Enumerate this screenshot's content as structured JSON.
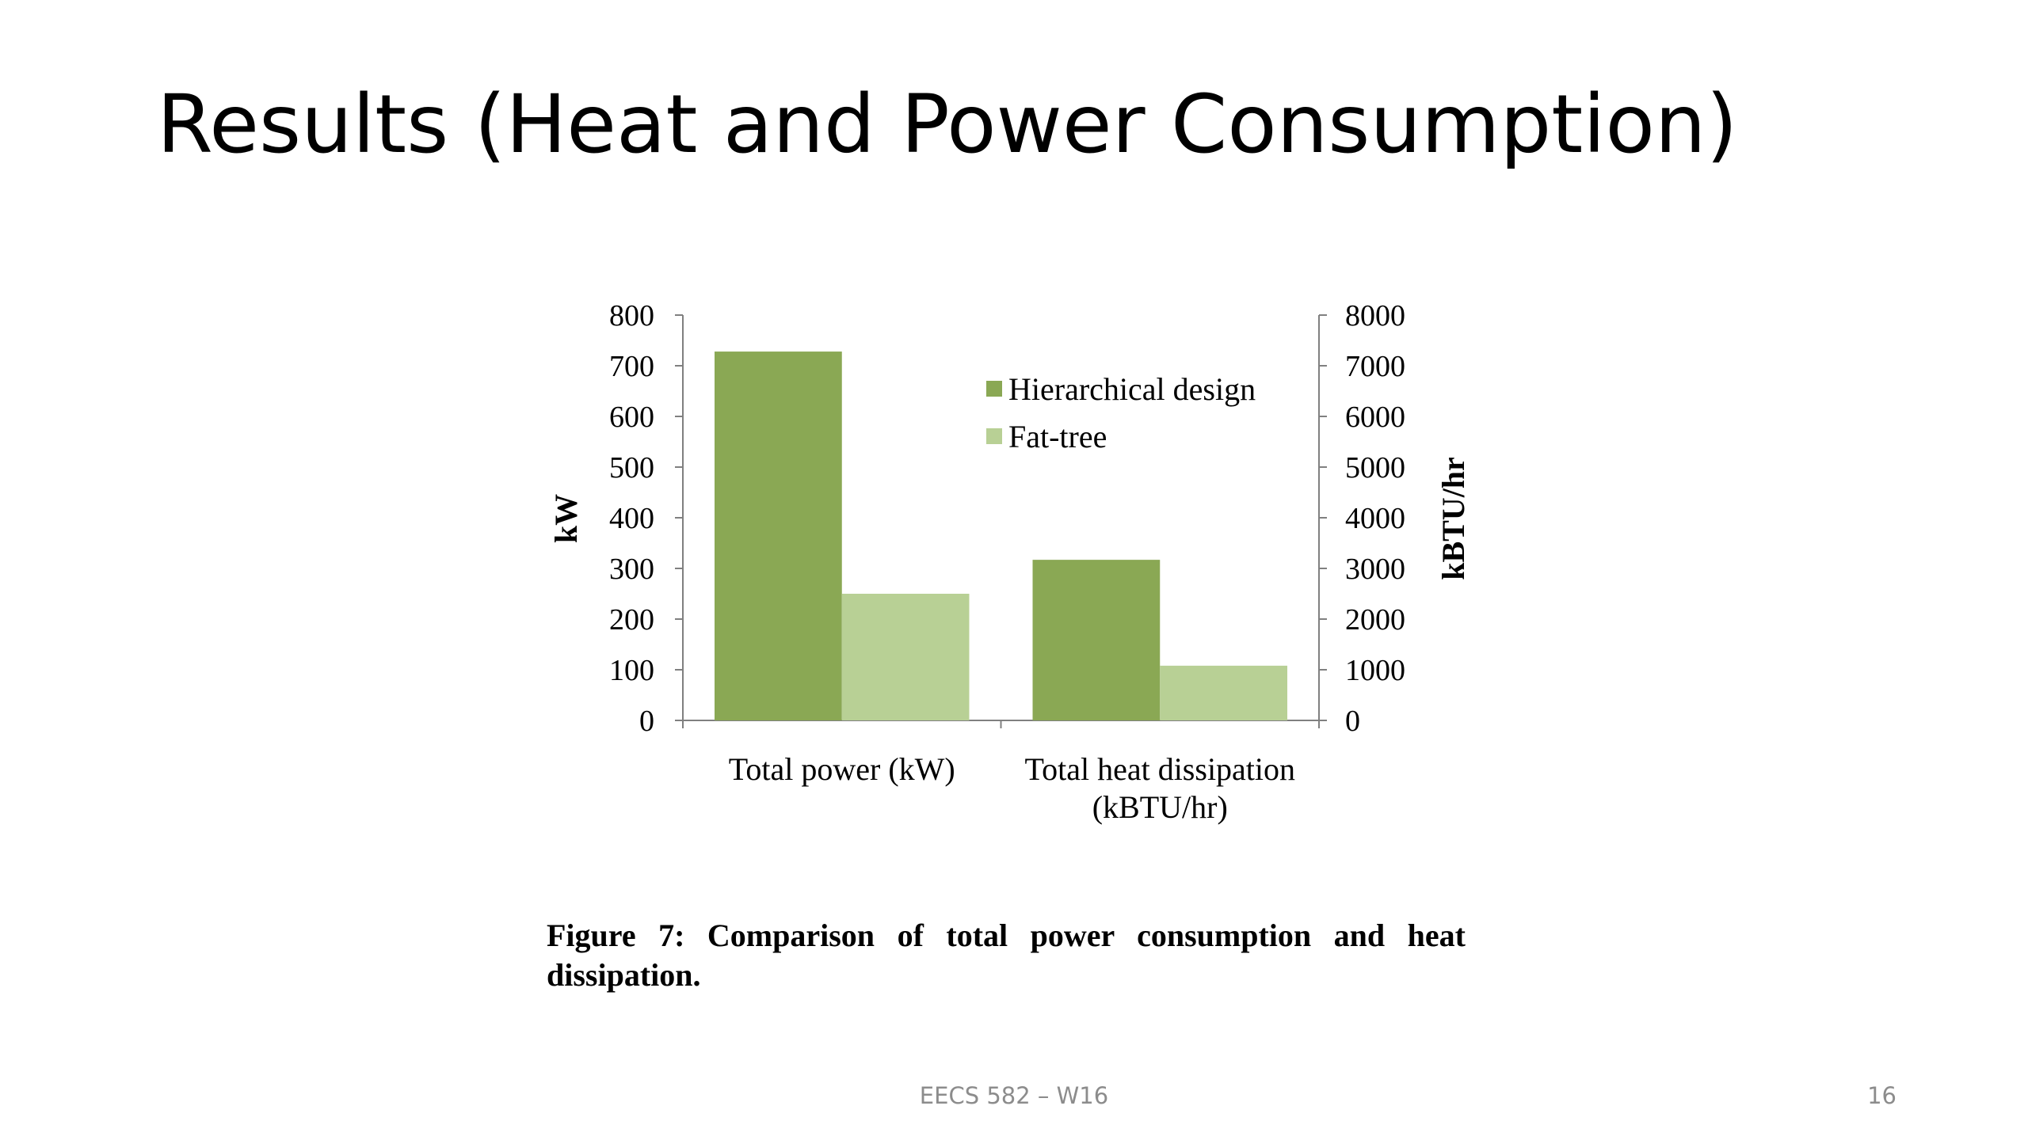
{
  "slide": {
    "title": "Results (Heat and Power Consumption)",
    "caption": "Figure 7:  Comparison of total power consumption and heat dissipation.",
    "footer": "EECS 582 – W16",
    "page_number": "16"
  },
  "chart_data": {
    "type": "bar",
    "categories": [
      "Total power (kW)",
      "Total heat dissipation (kBTU/hr)"
    ],
    "category_lines": [
      [
        "Total power (kW)"
      ],
      [
        "Total heat dissipation",
        "(kBTU/hr)"
      ]
    ],
    "series": [
      {
        "name": "Hierarchical design",
        "values": [
          728,
          317
        ],
        "color": "#8aa854"
      },
      {
        "name": "Fat-tree",
        "values": [
          250,
          108
        ],
        "color": "#b8d095"
      }
    ],
    "ylabel": "kW",
    "y2label": "kBTU/hr",
    "ylim": [
      0,
      800
    ],
    "y2lim": [
      0,
      8000
    ],
    "yticks": [
      "0",
      "100",
      "200",
      "300",
      "400",
      "500",
      "600",
      "700",
      "800"
    ],
    "y2ticks": [
      "0",
      "1000",
      "2000",
      "3000",
      "4000",
      "5000",
      "6000",
      "7000",
      "8000"
    ],
    "legend_position": "top-right",
    "grid": false
  }
}
